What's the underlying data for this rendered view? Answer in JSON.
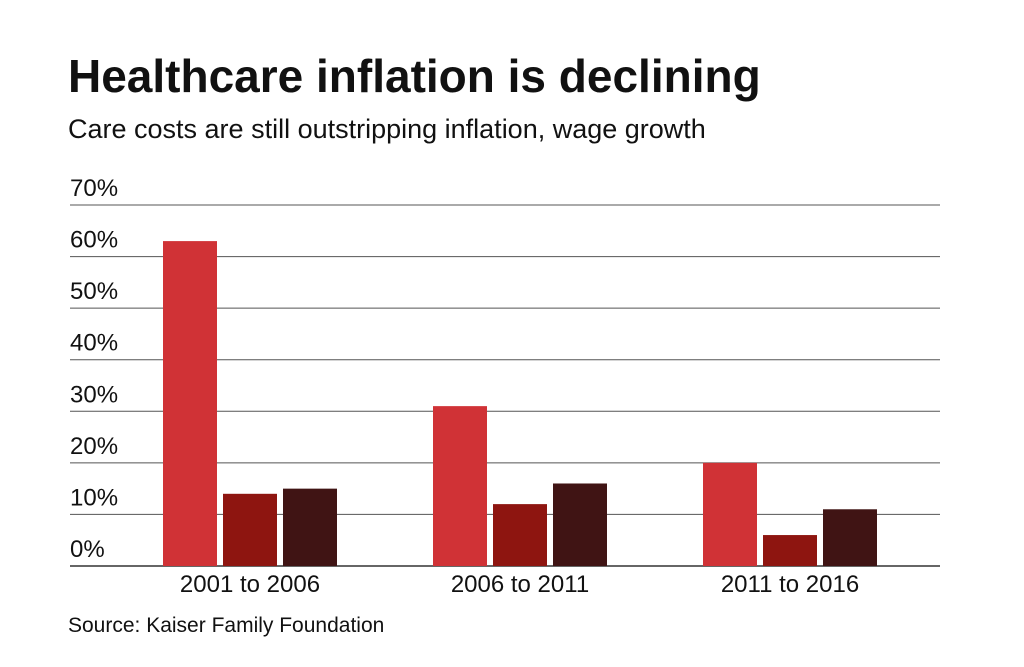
{
  "chart_data": {
    "type": "bar",
    "title": "Healthcare inflation is declining",
    "subtitle": "Care costs are still outstripping inflation, wage growth",
    "source": "Source: Kaiser Family Foundation",
    "categories": [
      "2001 to 2006",
      "2006 to 2011",
      "2011 to 2016"
    ],
    "series": [
      {
        "color": "#d03236",
        "values": [
          63,
          31,
          20
        ]
      },
      {
        "color": "#8e1510",
        "values": [
          14,
          12,
          6
        ]
      },
      {
        "color": "#401414",
        "values": [
          15,
          16,
          11
        ]
      }
    ],
    "ylim": [
      0,
      70
    ],
    "yticks": [
      {
        "value": 0,
        "label": "0%"
      },
      {
        "value": 10,
        "label": "10%"
      },
      {
        "value": 20,
        "label": "20%"
      },
      {
        "value": 30,
        "label": "30%"
      },
      {
        "value": 40,
        "label": "40%"
      },
      {
        "value": 50,
        "label": "50%"
      },
      {
        "value": 60,
        "label": "60%"
      },
      {
        "value": 70,
        "label": "70%"
      }
    ],
    "grid": true
  }
}
